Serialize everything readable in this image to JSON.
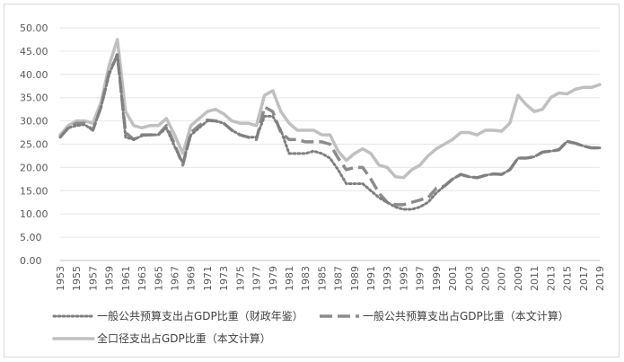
{
  "chart_data": {
    "type": "line",
    "title": "",
    "xlabel": "",
    "ylabel": "",
    "ylim": [
      0,
      50
    ],
    "ytick_step": 5,
    "ytick_format": "0.00",
    "xlim": [
      1953,
      2019
    ],
    "xtick_years": [
      1953,
      1955,
      1957,
      1959,
      1961,
      1963,
      1965,
      1967,
      1969,
      1971,
      1973,
      1975,
      1977,
      1979,
      1981,
      1983,
      1985,
      1987,
      1989,
      1991,
      1993,
      1995,
      1997,
      1999,
      2001,
      2003,
      2005,
      2007,
      2009,
      2011,
      2013,
      2015,
      2017,
      2019
    ],
    "grid": true,
    "legend_position": "bottom",
    "series": [
      {
        "name": "一般公共预算支出占GDP比重（财政年鉴）",
        "style": "dotted",
        "color": "#7f7f7f",
        "x": [
          1953,
          1954,
          1955,
          1956,
          1957,
          1958,
          1959,
          1960,
          1961,
          1962,
          1963,
          1964,
          1965,
          1966,
          1967,
          1968,
          1969,
          1970,
          1971,
          1972,
          1973,
          1974,
          1975,
          1976,
          1977,
          1978,
          1979,
          1980,
          1981,
          1982,
          1983,
          1984,
          1985,
          1986,
          1987,
          1988,
          1989,
          1990,
          1991,
          1992,
          1993,
          1994,
          1995,
          1996,
          1997,
          1998,
          1999,
          2000,
          2001,
          2002,
          2003,
          2004,
          2005,
          2006,
          2007,
          2008,
          2009,
          2010,
          2011,
          2012,
          2013,
          2014,
          2015,
          2016,
          2017,
          2018,
          2019
        ],
        "values": [
          26.5,
          28.5,
          29.0,
          29.2,
          28.0,
          33.0,
          40.0,
          44.5,
          26.5,
          26.0,
          26.8,
          27.0,
          27.0,
          28.5,
          24.5,
          21.0,
          27.0,
          28.5,
          30.0,
          30.0,
          29.5,
          28.0,
          27.0,
          26.5,
          26.5,
          31.0,
          31.0,
          28.0,
          23.0,
          23.0,
          23.0,
          23.5,
          23.0,
          22.0,
          19.5,
          16.5,
          16.5,
          16.5,
          15.0,
          13.5,
          12.5,
          11.5,
          11.0,
          11.0,
          11.5,
          12.5,
          14.5,
          16.0,
          17.5,
          18.5,
          18.0,
          17.8,
          18.3,
          18.6,
          18.5,
          19.5,
          22.0,
          22.0,
          22.3,
          23.3,
          23.5,
          23.8,
          25.6,
          25.2,
          24.6,
          24.2,
          24.2
        ]
      },
      {
        "name": "一般公共预算支出占GDP比重（本文计算）",
        "style": "dashed",
        "color": "#8c8c8c",
        "x": [
          1953,
          1954,
          1955,
          1956,
          1957,
          1958,
          1959,
          1960,
          1961,
          1962,
          1963,
          1964,
          1965,
          1966,
          1967,
          1968,
          1969,
          1970,
          1971,
          1972,
          1973,
          1974,
          1975,
          1976,
          1977,
          1978,
          1979,
          1980,
          1981,
          1982,
          1983,
          1984,
          1985,
          1986,
          1987,
          1988,
          1989,
          1990,
          1991,
          1992,
          1993,
          1994,
          1995,
          1996,
          1997,
          1998,
          1999,
          2000,
          2001,
          2002,
          2003,
          2004,
          2005,
          2006,
          2007,
          2008,
          2009,
          2010,
          2011,
          2012,
          2013,
          2014,
          2015,
          2016,
          2017,
          2018,
          2019
        ],
        "values": [
          26.5,
          28.5,
          29.5,
          29.5,
          28.0,
          33.0,
          40.5,
          44.0,
          27.5,
          26.0,
          27.0,
          27.0,
          27.0,
          29.0,
          25.0,
          20.5,
          27.5,
          29.0,
          30.2,
          30.0,
          29.5,
          28.0,
          27.0,
          26.5,
          26.0,
          33.0,
          32.0,
          27.5,
          26.0,
          26.0,
          25.5,
          25.5,
          25.5,
          25.0,
          22.0,
          19.5,
          20.0,
          20.0,
          17.5,
          14.5,
          12.5,
          12.0,
          12.0,
          12.5,
          13.0,
          13.5,
          15.5,
          16.0,
          17.5,
          18.5,
          18.0,
          17.8,
          18.3,
          18.6,
          18.5,
          19.5,
          22.0,
          22.0,
          22.3,
          23.3,
          23.5,
          23.8,
          25.6,
          25.2,
          24.6,
          24.2,
          24.2
        ]
      },
      {
        "name": "全口径支出占GDP比重（本文计算）",
        "style": "solid",
        "color": "#c0c0c0",
        "x": [
          1953,
          1954,
          1955,
          1956,
          1957,
          1958,
          1959,
          1960,
          1961,
          1962,
          1963,
          1964,
          1965,
          1966,
          1967,
          1968,
          1969,
          1970,
          1971,
          1972,
          1973,
          1974,
          1975,
          1976,
          1977,
          1978,
          1979,
          1980,
          1981,
          1982,
          1983,
          1984,
          1985,
          1986,
          1987,
          1988,
          1989,
          1990,
          1991,
          1992,
          1993,
          1994,
          1995,
          1996,
          1997,
          1998,
          1999,
          2000,
          2001,
          2002,
          2003,
          2004,
          2005,
          2006,
          2007,
          2008,
          2009,
          2010,
          2011,
          2012,
          2013,
          2014,
          2015,
          2016,
          2017,
          2018,
          2019
        ],
        "values": [
          27.0,
          29.0,
          30.0,
          30.0,
          29.5,
          34.0,
          42.0,
          47.5,
          32.0,
          29.0,
          28.5,
          29.0,
          29.0,
          30.5,
          27.0,
          23.0,
          29.0,
          30.5,
          32.0,
          32.5,
          31.5,
          30.0,
          29.5,
          29.5,
          29.0,
          35.5,
          36.5,
          32.0,
          29.5,
          28.0,
          28.0,
          28.0,
          27.0,
          27.0,
          23.5,
          21.5,
          23.0,
          24.0,
          23.0,
          20.5,
          20.0,
          18.0,
          17.8,
          19.5,
          20.5,
          22.5,
          24.0,
          25.0,
          26.0,
          27.5,
          27.5,
          27.0,
          28.0,
          28.0,
          27.8,
          29.5,
          35.5,
          33.5,
          32.0,
          32.5,
          35.0,
          36.0,
          35.8,
          36.8,
          37.2,
          37.2,
          37.8
        ]
      }
    ]
  }
}
